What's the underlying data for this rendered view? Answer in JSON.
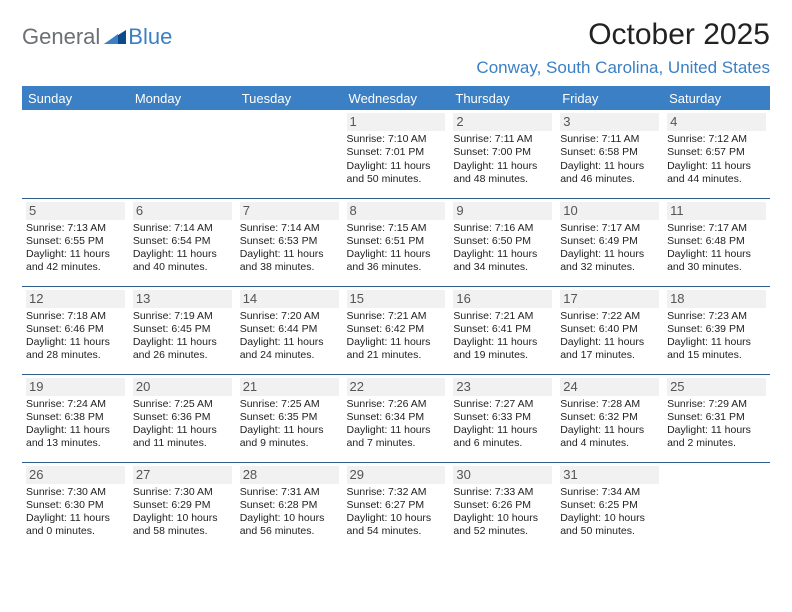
{
  "brand": {
    "general": "General",
    "blue": "Blue"
  },
  "header": {
    "month_title": "October 2025",
    "location": "Conway, South Carolina, United States"
  },
  "colors": {
    "accent": "#3b7fc4",
    "header_text": "#ffffff",
    "border": "#2f5d87",
    "daynum_bg": "#f1f1f1",
    "logo_gray": "#6b7074"
  },
  "day_names": [
    "Sunday",
    "Monday",
    "Tuesday",
    "Wednesday",
    "Thursday",
    "Friday",
    "Saturday"
  ],
  "weeks": [
    [
      null,
      null,
      null,
      {
        "n": "1",
        "sr": "Sunrise: 7:10 AM",
        "ss": "Sunset: 7:01 PM",
        "dl": "Daylight: 11 hours and 50 minutes."
      },
      {
        "n": "2",
        "sr": "Sunrise: 7:11 AM",
        "ss": "Sunset: 7:00 PM",
        "dl": "Daylight: 11 hours and 48 minutes."
      },
      {
        "n": "3",
        "sr": "Sunrise: 7:11 AM",
        "ss": "Sunset: 6:58 PM",
        "dl": "Daylight: 11 hours and 46 minutes."
      },
      {
        "n": "4",
        "sr": "Sunrise: 7:12 AM",
        "ss": "Sunset: 6:57 PM",
        "dl": "Daylight: 11 hours and 44 minutes."
      }
    ],
    [
      {
        "n": "5",
        "sr": "Sunrise: 7:13 AM",
        "ss": "Sunset: 6:55 PM",
        "dl": "Daylight: 11 hours and 42 minutes."
      },
      {
        "n": "6",
        "sr": "Sunrise: 7:14 AM",
        "ss": "Sunset: 6:54 PM",
        "dl": "Daylight: 11 hours and 40 minutes."
      },
      {
        "n": "7",
        "sr": "Sunrise: 7:14 AM",
        "ss": "Sunset: 6:53 PM",
        "dl": "Daylight: 11 hours and 38 minutes."
      },
      {
        "n": "8",
        "sr": "Sunrise: 7:15 AM",
        "ss": "Sunset: 6:51 PM",
        "dl": "Daylight: 11 hours and 36 minutes."
      },
      {
        "n": "9",
        "sr": "Sunrise: 7:16 AM",
        "ss": "Sunset: 6:50 PM",
        "dl": "Daylight: 11 hours and 34 minutes."
      },
      {
        "n": "10",
        "sr": "Sunrise: 7:17 AM",
        "ss": "Sunset: 6:49 PM",
        "dl": "Daylight: 11 hours and 32 minutes."
      },
      {
        "n": "11",
        "sr": "Sunrise: 7:17 AM",
        "ss": "Sunset: 6:48 PM",
        "dl": "Daylight: 11 hours and 30 minutes."
      }
    ],
    [
      {
        "n": "12",
        "sr": "Sunrise: 7:18 AM",
        "ss": "Sunset: 6:46 PM",
        "dl": "Daylight: 11 hours and 28 minutes."
      },
      {
        "n": "13",
        "sr": "Sunrise: 7:19 AM",
        "ss": "Sunset: 6:45 PM",
        "dl": "Daylight: 11 hours and 26 minutes."
      },
      {
        "n": "14",
        "sr": "Sunrise: 7:20 AM",
        "ss": "Sunset: 6:44 PM",
        "dl": "Daylight: 11 hours and 24 minutes."
      },
      {
        "n": "15",
        "sr": "Sunrise: 7:21 AM",
        "ss": "Sunset: 6:42 PM",
        "dl": "Daylight: 11 hours and 21 minutes."
      },
      {
        "n": "16",
        "sr": "Sunrise: 7:21 AM",
        "ss": "Sunset: 6:41 PM",
        "dl": "Daylight: 11 hours and 19 minutes."
      },
      {
        "n": "17",
        "sr": "Sunrise: 7:22 AM",
        "ss": "Sunset: 6:40 PM",
        "dl": "Daylight: 11 hours and 17 minutes."
      },
      {
        "n": "18",
        "sr": "Sunrise: 7:23 AM",
        "ss": "Sunset: 6:39 PM",
        "dl": "Daylight: 11 hours and 15 minutes."
      }
    ],
    [
      {
        "n": "19",
        "sr": "Sunrise: 7:24 AM",
        "ss": "Sunset: 6:38 PM",
        "dl": "Daylight: 11 hours and 13 minutes."
      },
      {
        "n": "20",
        "sr": "Sunrise: 7:25 AM",
        "ss": "Sunset: 6:36 PM",
        "dl": "Daylight: 11 hours and 11 minutes."
      },
      {
        "n": "21",
        "sr": "Sunrise: 7:25 AM",
        "ss": "Sunset: 6:35 PM",
        "dl": "Daylight: 11 hours and 9 minutes."
      },
      {
        "n": "22",
        "sr": "Sunrise: 7:26 AM",
        "ss": "Sunset: 6:34 PM",
        "dl": "Daylight: 11 hours and 7 minutes."
      },
      {
        "n": "23",
        "sr": "Sunrise: 7:27 AM",
        "ss": "Sunset: 6:33 PM",
        "dl": "Daylight: 11 hours and 6 minutes."
      },
      {
        "n": "24",
        "sr": "Sunrise: 7:28 AM",
        "ss": "Sunset: 6:32 PM",
        "dl": "Daylight: 11 hours and 4 minutes."
      },
      {
        "n": "25",
        "sr": "Sunrise: 7:29 AM",
        "ss": "Sunset: 6:31 PM",
        "dl": "Daylight: 11 hours and 2 minutes."
      }
    ],
    [
      {
        "n": "26",
        "sr": "Sunrise: 7:30 AM",
        "ss": "Sunset: 6:30 PM",
        "dl": "Daylight: 11 hours and 0 minutes."
      },
      {
        "n": "27",
        "sr": "Sunrise: 7:30 AM",
        "ss": "Sunset: 6:29 PM",
        "dl": "Daylight: 10 hours and 58 minutes."
      },
      {
        "n": "28",
        "sr": "Sunrise: 7:31 AM",
        "ss": "Sunset: 6:28 PM",
        "dl": "Daylight: 10 hours and 56 minutes."
      },
      {
        "n": "29",
        "sr": "Sunrise: 7:32 AM",
        "ss": "Sunset: 6:27 PM",
        "dl": "Daylight: 10 hours and 54 minutes."
      },
      {
        "n": "30",
        "sr": "Sunrise: 7:33 AM",
        "ss": "Sunset: 6:26 PM",
        "dl": "Daylight: 10 hours and 52 minutes."
      },
      {
        "n": "31",
        "sr": "Sunrise: 7:34 AM",
        "ss": "Sunset: 6:25 PM",
        "dl": "Daylight: 10 hours and 50 minutes."
      },
      null
    ]
  ]
}
